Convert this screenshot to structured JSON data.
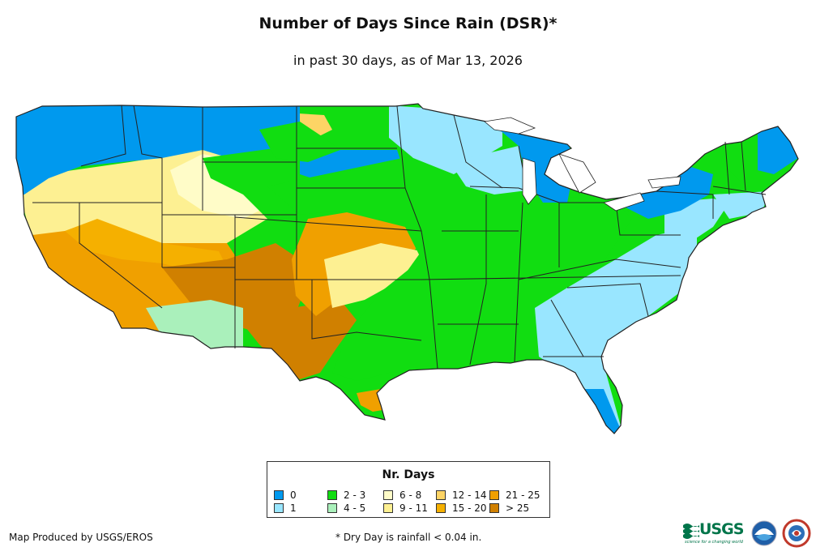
{
  "title": "Number of Days Since Rain (DSR)*",
  "subtitle": "in past 30 days, as of Mar 13, 2026",
  "legend": {
    "title": "Nr. Days",
    "items": [
      {
        "label": "0",
        "color": "#0099ee"
      },
      {
        "label": "1",
        "color": "#99e6ff"
      },
      {
        "label": "2 - 3",
        "color": "#11dd11"
      },
      {
        "label": "4 - 5",
        "color": "#aaf0bb"
      },
      {
        "label": "6 - 8",
        "color": "#fffcc8"
      },
      {
        "label": "9 - 11",
        "color": "#fdf092"
      },
      {
        "label": "12 - 14",
        "color": "#fdd465"
      },
      {
        "label": "15 - 20",
        "color": "#f5b000"
      },
      {
        "label": "21 - 25",
        "color": "#f0a000"
      },
      {
        "label": "> 25",
        "color": "#d08000"
      }
    ]
  },
  "credit": "Map Produced by USGS/EROS",
  "footnote": "* Dry Day is rainfall < 0.04 in.",
  "logos": {
    "usgs": "USGS",
    "usgs_tagline": "science for a changing world",
    "noaa": "noaa-logo-icon",
    "nws": "nws-logo-icon"
  }
}
